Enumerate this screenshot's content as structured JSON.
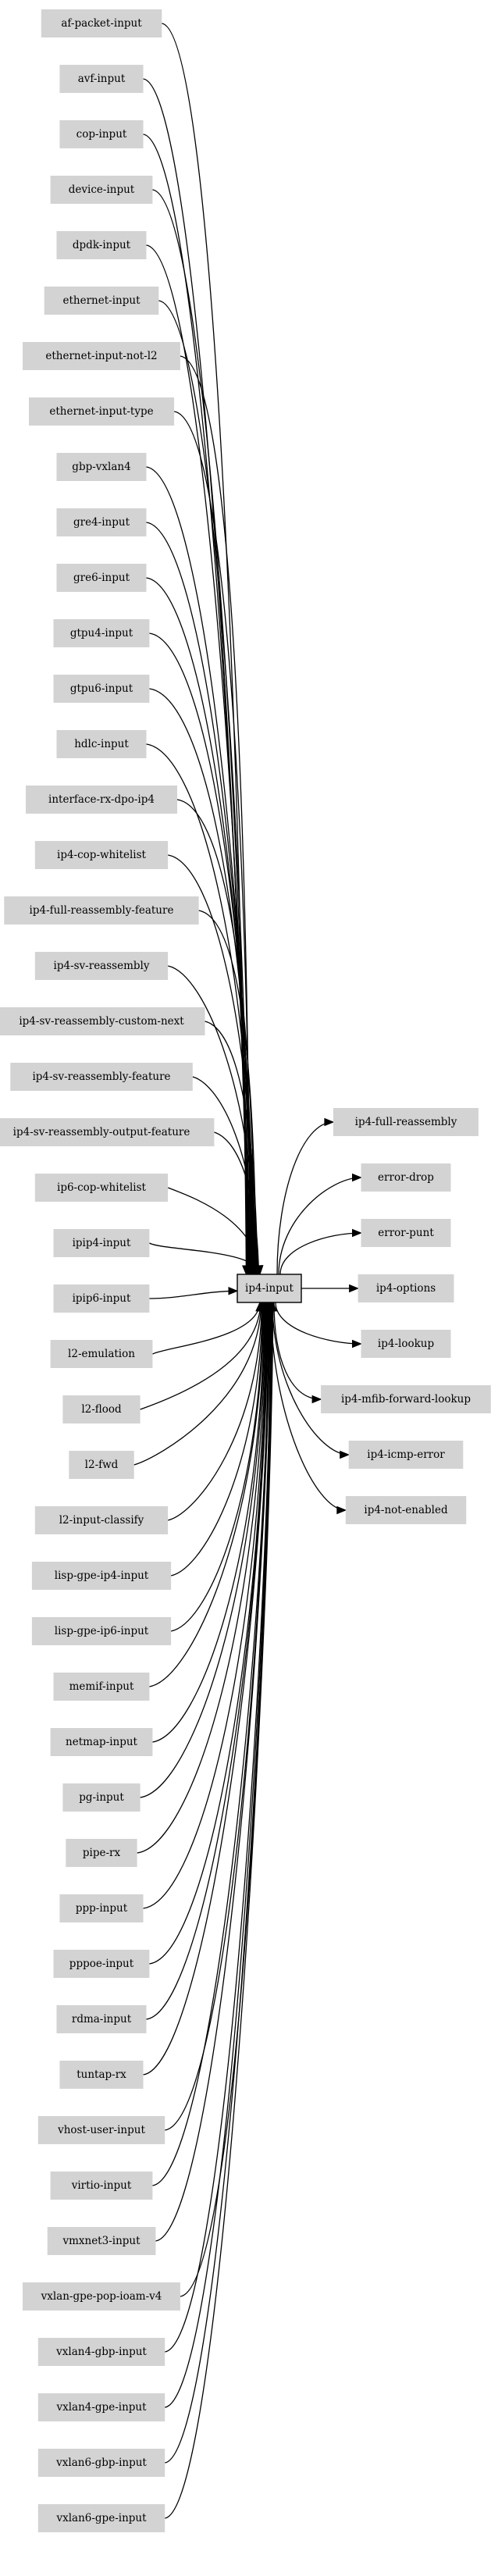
{
  "graph": {
    "center_node": "ip4-input",
    "input_nodes": [
      "af-packet-input",
      "avf-input",
      "cop-input",
      "device-input",
      "dpdk-input",
      "ethernet-input",
      "ethernet-input-not-l2",
      "ethernet-input-type",
      "gbp-vxlan4",
      "gre4-input",
      "gre6-input",
      "gtpu4-input",
      "gtpu6-input",
      "hdlc-input",
      "interface-rx-dpo-ip4",
      "ip4-cop-whitelist",
      "ip4-full-reassembly-feature",
      "ip4-sv-reassembly",
      "ip4-sv-reassembly-custom-next",
      "ip4-sv-reassembly-feature",
      "ip4-sv-reassembly-output-feature",
      "ip6-cop-whitelist",
      "ipip4-input",
      "ipip6-input",
      "l2-emulation",
      "l2-flood",
      "l2-fwd",
      "l2-input-classify",
      "lisp-gpe-ip4-input",
      "lisp-gpe-ip6-input",
      "memif-input",
      "netmap-input",
      "pg-input",
      "pipe-rx",
      "ppp-input",
      "pppoe-input",
      "rdma-input",
      "tuntap-rx",
      "vhost-user-input",
      "virtio-input",
      "vmxnet3-input",
      "vxlan-gpe-pop-ioam-v4",
      "vxlan4-gbp-input",
      "vxlan4-gpe-input",
      "vxlan6-gbp-input",
      "vxlan6-gpe-input"
    ],
    "output_nodes": [
      "ip4-full-reassembly",
      "error-drop",
      "error-punt",
      "ip4-options",
      "ip4-lookup",
      "ip4-mfib-forward-lookup",
      "ip4-icmp-error",
      "ip4-not-enabled"
    ],
    "colors": {
      "node_fill": "#d3d3d3",
      "edge": "#000000",
      "background": "#ffffff"
    }
  }
}
